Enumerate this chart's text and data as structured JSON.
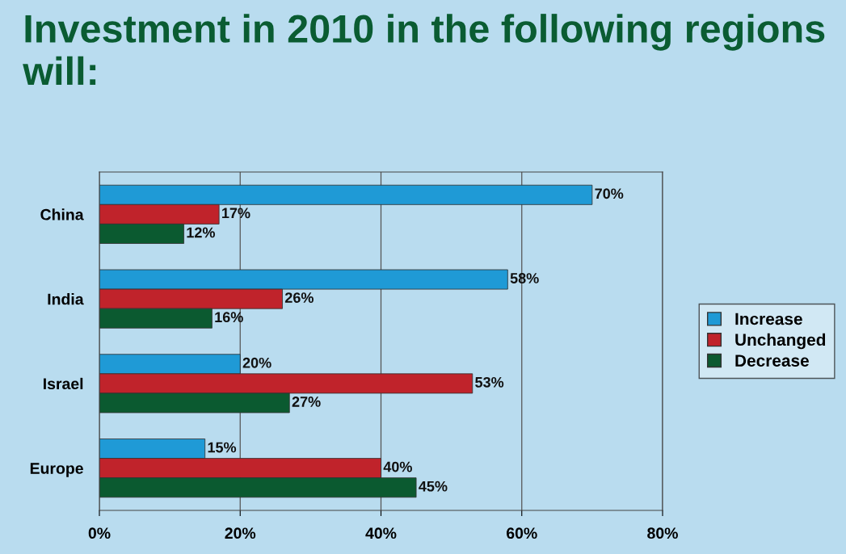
{
  "chart_data": {
    "type": "bar",
    "orientation": "horizontal",
    "title": "Investment in 2010 in the following regions will:",
    "categories": [
      "China",
      "India",
      "Israel",
      "Europe"
    ],
    "series": [
      {
        "name": "Increase",
        "color": "#1f9ad6",
        "values": [
          70,
          58,
          20,
          15
        ],
        "value_labels": [
          "70%",
          "58%",
          "20%",
          "15%"
        ]
      },
      {
        "name": "Unchanged",
        "color": "#c0232b",
        "values": [
          17,
          26,
          53,
          40
        ],
        "value_labels": [
          "17%",
          "26%",
          "53%",
          "40%"
        ]
      },
      {
        "name": "Decrease",
        "color": "#0b5a30",
        "values": [
          12,
          16,
          27,
          45
        ],
        "value_labels": [
          "12%",
          "16%",
          "27%",
          "45%"
        ]
      }
    ],
    "xlim": [
      0,
      80
    ],
    "xticks": [
      {
        "value": 0,
        "label": "0%"
      },
      {
        "value": 20,
        "label": "20%"
      },
      {
        "value": 40,
        "label": "40%"
      },
      {
        "value": 60,
        "label": "60%"
      },
      {
        "value": 80,
        "label": "80%"
      }
    ],
    "grid": "x",
    "legend": "right"
  }
}
